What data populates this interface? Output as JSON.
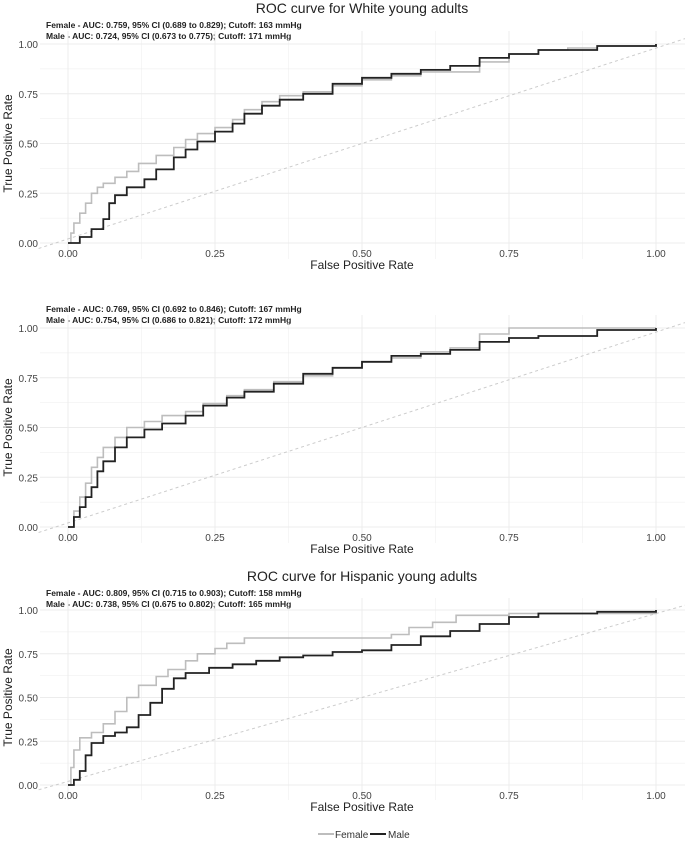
{
  "chart_data": [
    {
      "type": "line",
      "title": "ROC curve for White young adults",
      "xlabel": "False Positive Rate",
      "ylabel": "True Positive Rate",
      "xlim": [
        0,
        1
      ],
      "ylim": [
        0,
        1
      ],
      "x_ticks": [
        "0.00",
        "0.25",
        "0.50",
        "0.75",
        "1.00"
      ],
      "y_ticks": [
        "0.00",
        "0.25",
        "0.50",
        "0.75",
        "1.00"
      ],
      "grid": true,
      "annotations": [
        "Female - AUC: 0.759, 95% CI (0.689 to 0.829); Cutoff: 163 mmHg",
        "Male -     AUC: 0.724, 95% CI (0.673 to 0.775); Cutoff: 171 mmHg"
      ],
      "series": [
        {
          "name": "Female",
          "points": [
            [
              0,
              0
            ],
            [
              0.005,
              0.05
            ],
            [
              0.01,
              0.1
            ],
            [
              0.02,
              0.15
            ],
            [
              0.03,
              0.2
            ],
            [
              0.04,
              0.25
            ],
            [
              0.05,
              0.28
            ],
            [
              0.06,
              0.3
            ],
            [
              0.08,
              0.33
            ],
            [
              0.1,
              0.36
            ],
            [
              0.12,
              0.4
            ],
            [
              0.15,
              0.44
            ],
            [
              0.18,
              0.48
            ],
            [
              0.2,
              0.52
            ],
            [
              0.22,
              0.55
            ],
            [
              0.25,
              0.58
            ],
            [
              0.28,
              0.62
            ],
            [
              0.3,
              0.67
            ],
            [
              0.33,
              0.71
            ],
            [
              0.36,
              0.74
            ],
            [
              0.4,
              0.76
            ],
            [
              0.45,
              0.79
            ],
            [
              0.5,
              0.82
            ],
            [
              0.55,
              0.84
            ],
            [
              0.6,
              0.86
            ],
            [
              0.7,
              0.91
            ],
            [
              0.75,
              0.95
            ],
            [
              0.8,
              0.97
            ],
            [
              0.85,
              0.98
            ],
            [
              0.9,
              0.99
            ],
            [
              1,
              1
            ]
          ]
        },
        {
          "name": "Male",
          "points": [
            [
              0,
              0
            ],
            [
              0.02,
              0.03
            ],
            [
              0.04,
              0.07
            ],
            [
              0.06,
              0.12
            ],
            [
              0.07,
              0.2
            ],
            [
              0.08,
              0.24
            ],
            [
              0.1,
              0.28
            ],
            [
              0.13,
              0.32
            ],
            [
              0.15,
              0.37
            ],
            [
              0.18,
              0.43
            ],
            [
              0.2,
              0.47
            ],
            [
              0.22,
              0.51
            ],
            [
              0.25,
              0.56
            ],
            [
              0.28,
              0.6
            ],
            [
              0.3,
              0.65
            ],
            [
              0.33,
              0.69
            ],
            [
              0.36,
              0.72
            ],
            [
              0.4,
              0.75
            ],
            [
              0.45,
              0.8
            ],
            [
              0.5,
              0.83
            ],
            [
              0.55,
              0.85
            ],
            [
              0.6,
              0.87
            ],
            [
              0.65,
              0.89
            ],
            [
              0.7,
              0.93
            ],
            [
              0.75,
              0.95
            ],
            [
              0.8,
              0.97
            ],
            [
              0.9,
              0.99
            ],
            [
              1,
              1
            ]
          ]
        }
      ]
    },
    {
      "type": "line",
      "title": "",
      "xlabel": "False Positive Rate",
      "ylabel": "True Positive Rate",
      "xlim": [
        0,
        1
      ],
      "ylim": [
        0,
        1
      ],
      "x_ticks": [
        "0.00",
        "0.25",
        "0.50",
        "0.75",
        "1.00"
      ],
      "y_ticks": [
        "0.00",
        "0.25",
        "0.50",
        "0.75",
        "1.00"
      ],
      "grid": true,
      "annotations": [
        "Female - AUC: 0.769, 95% CI (0.692 to 0.846); Cutoff: 167 mmHg",
        "Male -     AUC: 0.754, 95% CI (0.686 to 0.821); Cutoff: 172 mmHg"
      ],
      "series": [
        {
          "name": "Female",
          "points": [
            [
              0,
              0
            ],
            [
              0.01,
              0.08
            ],
            [
              0.02,
              0.15
            ],
            [
              0.03,
              0.22
            ],
            [
              0.04,
              0.3
            ],
            [
              0.05,
              0.35
            ],
            [
              0.06,
              0.4
            ],
            [
              0.08,
              0.45
            ],
            [
              0.1,
              0.5
            ],
            [
              0.13,
              0.53
            ],
            [
              0.16,
              0.56
            ],
            [
              0.2,
              0.58
            ],
            [
              0.23,
              0.62
            ],
            [
              0.27,
              0.66
            ],
            [
              0.3,
              0.69
            ],
            [
              0.35,
              0.73
            ],
            [
              0.4,
              0.76
            ],
            [
              0.45,
              0.8
            ],
            [
              0.5,
              0.83
            ],
            [
              0.55,
              0.85
            ],
            [
              0.6,
              0.88
            ],
            [
              0.65,
              0.9
            ],
            [
              0.7,
              0.97
            ],
            [
              0.75,
              1
            ],
            [
              1,
              1
            ]
          ]
        },
        {
          "name": "Male",
          "points": [
            [
              0,
              0
            ],
            [
              0.01,
              0.05
            ],
            [
              0.02,
              0.1
            ],
            [
              0.03,
              0.15
            ],
            [
              0.04,
              0.2
            ],
            [
              0.05,
              0.28
            ],
            [
              0.06,
              0.33
            ],
            [
              0.08,
              0.4
            ],
            [
              0.1,
              0.45
            ],
            [
              0.13,
              0.49
            ],
            [
              0.16,
              0.52
            ],
            [
              0.2,
              0.56
            ],
            [
              0.23,
              0.61
            ],
            [
              0.27,
              0.65
            ],
            [
              0.3,
              0.68
            ],
            [
              0.35,
              0.72
            ],
            [
              0.4,
              0.77
            ],
            [
              0.45,
              0.8
            ],
            [
              0.5,
              0.83
            ],
            [
              0.55,
              0.86
            ],
            [
              0.6,
              0.87
            ],
            [
              0.65,
              0.89
            ],
            [
              0.7,
              0.93
            ],
            [
              0.75,
              0.95
            ],
            [
              0.8,
              0.96
            ],
            [
              0.9,
              0.99
            ],
            [
              1,
              1
            ]
          ]
        }
      ]
    },
    {
      "type": "line",
      "title": "ROC curve for Hispanic young adults",
      "xlabel": "False Positive Rate",
      "ylabel": "True Positive Rate",
      "xlim": [
        0,
        1
      ],
      "ylim": [
        0,
        1
      ],
      "x_ticks": [
        "0.00",
        "0.25",
        "0.50",
        "0.75",
        "1.00"
      ],
      "y_ticks": [
        "0.00",
        "0.25",
        "0.50",
        "0.75",
        "1.00"
      ],
      "grid": true,
      "annotations": [
        "Female - AUC: 0.809, 95% CI (0.715 to 0.903); Cutoff: 158 mmHg",
        "Male -     AUC: 0.738, 95% CI (0.675 to 0.802); Cutoff: 165 mmHg"
      ],
      "series": [
        {
          "name": "Female",
          "points": [
            [
              0,
              0
            ],
            [
              0.005,
              0.1
            ],
            [
              0.01,
              0.2
            ],
            [
              0.02,
              0.27
            ],
            [
              0.04,
              0.3
            ],
            [
              0.06,
              0.35
            ],
            [
              0.08,
              0.42
            ],
            [
              0.1,
              0.5
            ],
            [
              0.12,
              0.57
            ],
            [
              0.15,
              0.62
            ],
            [
              0.17,
              0.66
            ],
            [
              0.2,
              0.71
            ],
            [
              0.22,
              0.75
            ],
            [
              0.25,
              0.78
            ],
            [
              0.27,
              0.81
            ],
            [
              0.3,
              0.84
            ],
            [
              0.4,
              0.84
            ],
            [
              0.5,
              0.84
            ],
            [
              0.55,
              0.86
            ],
            [
              0.58,
              0.9
            ],
            [
              0.62,
              0.93
            ],
            [
              0.66,
              0.97
            ],
            [
              0.75,
              0.98
            ],
            [
              0.9,
              0.98
            ],
            [
              0.97,
              0.98
            ],
            [
              1,
              1
            ]
          ]
        },
        {
          "name": "Male",
          "points": [
            [
              0,
              0
            ],
            [
              0.01,
              0.03
            ],
            [
              0.02,
              0.08
            ],
            [
              0.03,
              0.17
            ],
            [
              0.04,
              0.24
            ],
            [
              0.06,
              0.28
            ],
            [
              0.08,
              0.3
            ],
            [
              0.1,
              0.33
            ],
            [
              0.12,
              0.4
            ],
            [
              0.14,
              0.47
            ],
            [
              0.16,
              0.55
            ],
            [
              0.18,
              0.61
            ],
            [
              0.2,
              0.64
            ],
            [
              0.24,
              0.67
            ],
            [
              0.28,
              0.69
            ],
            [
              0.32,
              0.71
            ],
            [
              0.36,
              0.73
            ],
            [
              0.4,
              0.74
            ],
            [
              0.45,
              0.76
            ],
            [
              0.5,
              0.77
            ],
            [
              0.55,
              0.8
            ],
            [
              0.6,
              0.85
            ],
            [
              0.65,
              0.88
            ],
            [
              0.7,
              0.92
            ],
            [
              0.75,
              0.96
            ],
            [
              0.8,
              0.98
            ],
            [
              0.9,
              0.99
            ],
            [
              1,
              1
            ]
          ]
        }
      ]
    }
  ],
  "legend": {
    "female_label": "Female",
    "male_label": "Male"
  },
  "colors": {
    "female": "#bdbdbd",
    "male": "#222222",
    "diagonal": "#cccccc",
    "grid": "#ececec"
  }
}
